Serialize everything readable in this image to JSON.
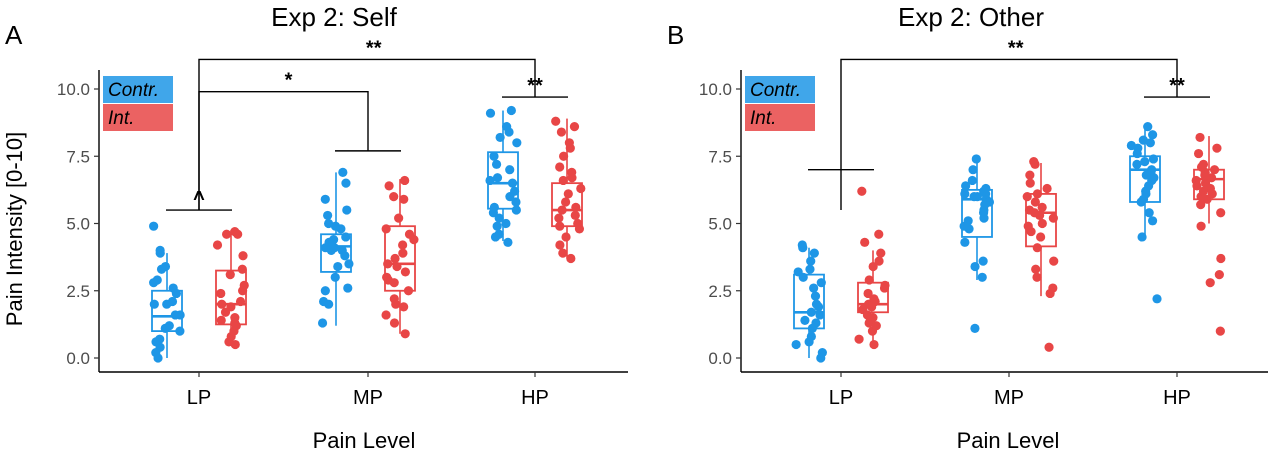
{
  "colors": {
    "contr": "#1e96e6",
    "int": "#e84646",
    "axis": "#000000",
    "tick_text": "#4d4d4d"
  },
  "chart_data": [
    {
      "type": "box",
      "panel_label": "A",
      "title": "Exp 2: Self",
      "xlabel": "Pain  Level",
      "ylabel": "Pain Intensity [0-10]",
      "ylim": [
        0,
        10
      ],
      "yticks": [
        "0.0",
        "2.5",
        "5.0",
        "7.5",
        "10.0"
      ],
      "ytick_values": [
        0,
        2.5,
        5,
        7.5,
        10
      ],
      "categories": [
        "LP",
        "MP",
        "HP"
      ],
      "legend": {
        "position": "top-left",
        "labels": [
          "Contr.",
          "Int."
        ]
      },
      "series": [
        {
          "name": "Contr.",
          "color": "#1e96e6",
          "boxes": [
            {
              "min": 0.0,
              "q1": 1.0,
              "median": 1.55,
              "q3": 2.5,
              "max": 3.9
            },
            {
              "min": 1.2,
              "q1": 3.2,
              "median": 4.15,
              "q3": 4.6,
              "max": 6.9
            },
            {
              "min": 4.35,
              "q1": 5.55,
              "median": 6.5,
              "q3": 7.65,
              "max": 9.2
            }
          ],
          "points": [
            [
              1.1,
              2.0,
              0.7,
              4.9,
              0.0,
              2.0,
              1.0,
              0.4,
              3.9,
              3.3,
              2.6,
              2.4,
              1.6,
              3.4,
              1.2,
              2.1,
              0.2,
              0.6,
              2.8,
              2.9,
              1.6,
              4.0
            ],
            [
              5.0,
              4.0,
              1.3,
              3.5,
              3.8,
              2.0,
              5.5,
              4.4,
              4.9,
              6.9,
              6.5,
              3.0,
              4.3,
              4.5,
              2.6,
              4.1,
              2.5,
              3.4,
              5.9,
              4.1,
              5.3,
              2.1,
              4.8,
              4.0
            ],
            [
              5.2,
              4.6,
              8.4,
              7.0,
              6.0,
              9.1,
              5.5,
              6.5,
              5.8,
              4.3,
              6.7,
              7.5,
              8.6,
              8.0,
              5.0,
              9.2,
              6.2,
              4.9,
              7.2,
              5.6,
              8.2,
              4.5,
              6.6,
              5.4
            ]
          ]
        },
        {
          "name": "Int.",
          "color": "#e84646",
          "boxes": [
            {
              "min": 0.5,
              "q1": 1.25,
              "median": 2.0,
              "q3": 3.25,
              "max": 4.75
            },
            {
              "min": 0.9,
              "q1": 2.5,
              "median": 3.5,
              "q3": 4.9,
              "max": 6.65
            },
            {
              "min": 3.7,
              "q1": 4.9,
              "median": 5.5,
              "q3": 6.5,
              "max": 8.9
            }
          ],
          "points": [
            [
              1.5,
              3.3,
              0.5,
              2.0,
              4.6,
              1.3,
              2.4,
              0.8,
              4.2,
              3.8,
              1.9,
              2.7,
              1.0,
              4.7,
              1.7,
              2.1,
              3.1,
              0.6,
              2.5,
              1.4,
              4.6,
              1.2
            ],
            [
              3.0,
              2.0,
              4.8,
              6.6,
              1.6,
              0.9,
              3.4,
              2.5,
              4.2,
              5.2,
              3.5,
              6.4,
              2.8,
              1.3,
              4.6,
              3.9,
              2.2,
              5.9,
              3.7,
              2.9,
              1.9,
              3.2,
              4.4,
              6.0
            ],
            [
              5.3,
              6.6,
              3.9,
              8.8,
              4.8,
              7.1,
              5.5,
              6.1,
              4.2,
              8.6,
              5.8,
              3.7,
              6.9,
              5.0,
              7.8,
              5.2,
              6.3,
              8.4,
              4.5,
              5.6,
              6.7,
              7.5,
              4.9,
              8.0
            ]
          ]
        }
      ],
      "significance": [
        {
          "label": "**",
          "from": "LP",
          "to": "HP",
          "level": 11.1
        },
        {
          "label": "*",
          "from": "LP",
          "to": "MP",
          "level": 9.9
        },
        {
          "label": "^",
          "from": "LP",
          "to": "LP",
          "level": 5.5
        },
        {
          "label": "**",
          "from": "HP",
          "to": "HP",
          "level": 9.7
        }
      ]
    },
    {
      "type": "box",
      "panel_label": "B",
      "title": "Exp 2: Other",
      "xlabel": "Pain  Level",
      "ylabel": "",
      "ylim": [
        0,
        10
      ],
      "yticks": [
        "0.0",
        "2.5",
        "5.0",
        "7.5",
        "10.0"
      ],
      "ytick_values": [
        0,
        2.5,
        5,
        7.5,
        10
      ],
      "categories": [
        "LP",
        "MP",
        "HP"
      ],
      "legend": {
        "position": "top-left",
        "labels": [
          "Contr.",
          "Int."
        ]
      },
      "series": [
        {
          "name": "Contr.",
          "color": "#1e96e6",
          "boxes": [
            {
              "min": 0.0,
              "q1": 1.1,
              "median": 1.7,
              "q3": 3.1,
              "max": 4.1
            },
            {
              "min": 2.9,
              "q1": 4.5,
              "median": 5.9,
              "q3": 6.25,
              "max": 7.4
            },
            {
              "min": 4.5,
              "q1": 5.8,
              "median": 7.0,
              "q3": 7.5,
              "max": 8.6
            }
          ],
          "points": [
            [
              4.2,
              1.1,
              3.6,
              0.2,
              2.0,
              1.9,
              3.2,
              0.6,
              2.8,
              1.4,
              3.9,
              1.6,
              0.0,
              2.3,
              3.0,
              0.8,
              1.7,
              4.1,
              2.6,
              1.3,
              3.3,
              0.5
            ],
            [
              7.4,
              5.9,
              5.1,
              6.2,
              3.0,
              4.8,
              6.0,
              5.5,
              6.4,
              3.6,
              5.7,
              1.1,
              6.1,
              4.3,
              6.6,
              5.4,
              6.0,
              3.4,
              5.8,
              4.9,
              6.3,
              7.0,
              5.2,
              6.1
            ],
            [
              7.6,
              6.9,
              2.2,
              8.6,
              5.9,
              7.2,
              6.4,
              8.1,
              4.5,
              7.8,
              6.6,
              5.4,
              7.0,
              8.3,
              6.1,
              7.4,
              5.8,
              7.9,
              6.8,
              5.1,
              7.3,
              6.2,
              8.0,
              6.7
            ]
          ]
        },
        {
          "name": "Int.",
          "color": "#e84646",
          "boxes": [
            {
              "min": 0.5,
              "q1": 1.7,
              "median": 2.0,
              "q3": 2.8,
              "max": 4.0
            },
            {
              "min": 2.3,
              "q1": 4.15,
              "median": 5.4,
              "q3": 6.1,
              "max": 7.25
            },
            {
              "min": 5.0,
              "q1": 5.9,
              "median": 6.65,
              "q3": 7.0,
              "max": 8.25
            }
          ],
          "points": [
            [
              6.2,
              2.0,
              1.3,
              4.3,
              2.6,
              0.5,
              1.8,
              3.9,
              2.2,
              1.0,
              4.6,
              1.6,
              2.9,
              0.7,
              2.4,
              1.9,
              3.4,
              1.2,
              2.7,
              2.1,
              3.6,
              1.5
            ],
            [
              7.3,
              5.6,
              0.4,
              4.9,
              6.1,
              2.4,
              5.3,
              7.2,
              4.1,
              6.3,
              3.0,
              5.8,
              5.0,
              6.8,
              3.6,
              5.5,
              4.5,
              6.5,
              5.2,
              2.6,
              6.0,
              4.7,
              5.4,
              3.3
            ],
            [
              6.9,
              8.2,
              1.0,
              6.5,
              5.9,
              3.7,
              7.0,
              6.1,
              2.8,
              6.8,
              5.4,
              7.6,
              3.1,
              6.6,
              6.3,
              7.2,
              4.9,
              6.0,
              7.1,
              5.7,
              6.4,
              7.8,
              6.2,
              6.7
            ]
          ]
        }
      ],
      "significance": [
        {
          "label": "**",
          "from": "LP",
          "to": "HP",
          "level": 11.1
        },
        {
          "label": "**",
          "from": "HP",
          "to": "HP",
          "level": 9.7
        }
      ]
    }
  ]
}
